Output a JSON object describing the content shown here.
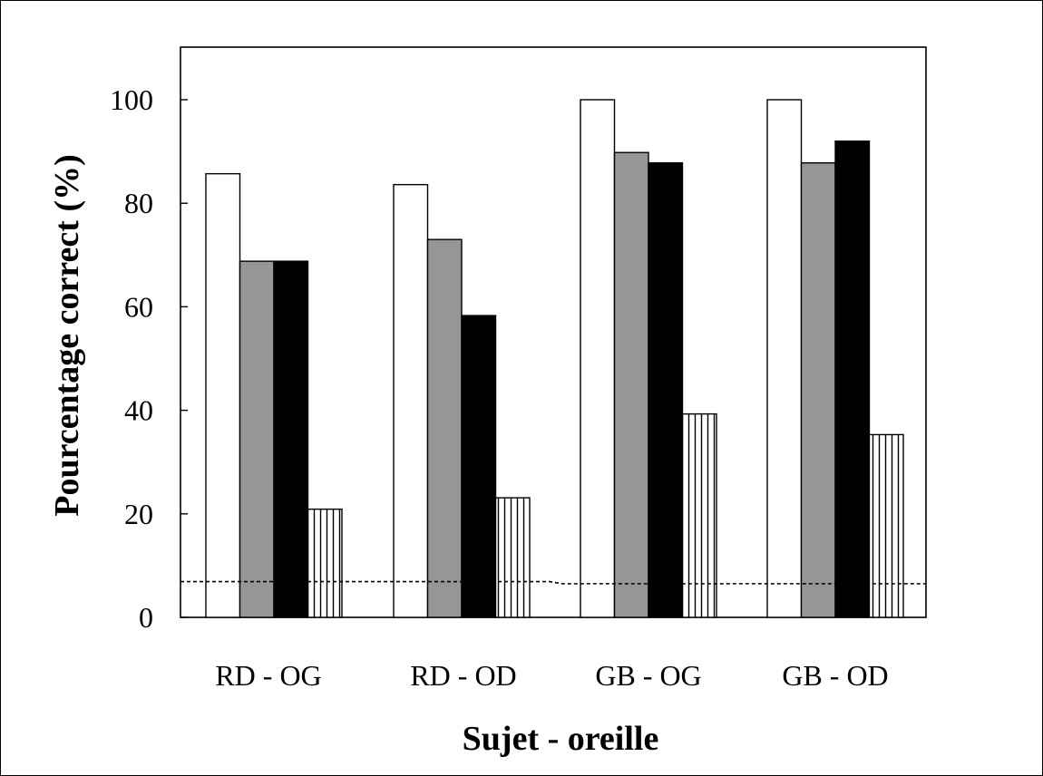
{
  "chart_data": {
    "type": "bar",
    "title": "",
    "xlabel": "Sujet - oreille",
    "ylabel": "Pourcentage correct (%)",
    "ylim": [
      0,
      100
    ],
    "yticks": [
      "0",
      "20",
      "40",
      "60",
      "80",
      "100"
    ],
    "categories": [
      "RD - OG",
      "RD - OD",
      "GB - OG",
      "GB - OD"
    ],
    "series": [
      {
        "values": [
          85.7,
          83.6,
          100,
          100
        ],
        "fill": "#ffffff"
      },
      {
        "values": [
          68.8,
          73.0,
          89.8,
          87.8
        ],
        "fill": "#969696"
      },
      {
        "values": [
          68.8,
          58.3,
          87.8,
          92.0
        ],
        "fill": "#000000"
      },
      {
        "values": [
          20.9,
          23.1,
          39.3,
          35.3
        ],
        "fill": "pattern-vertical-stripes"
      }
    ],
    "chance_level": [
      6.9,
      6.9,
      6.5,
      6.5
    ],
    "grid": false,
    "legend": "none"
  }
}
